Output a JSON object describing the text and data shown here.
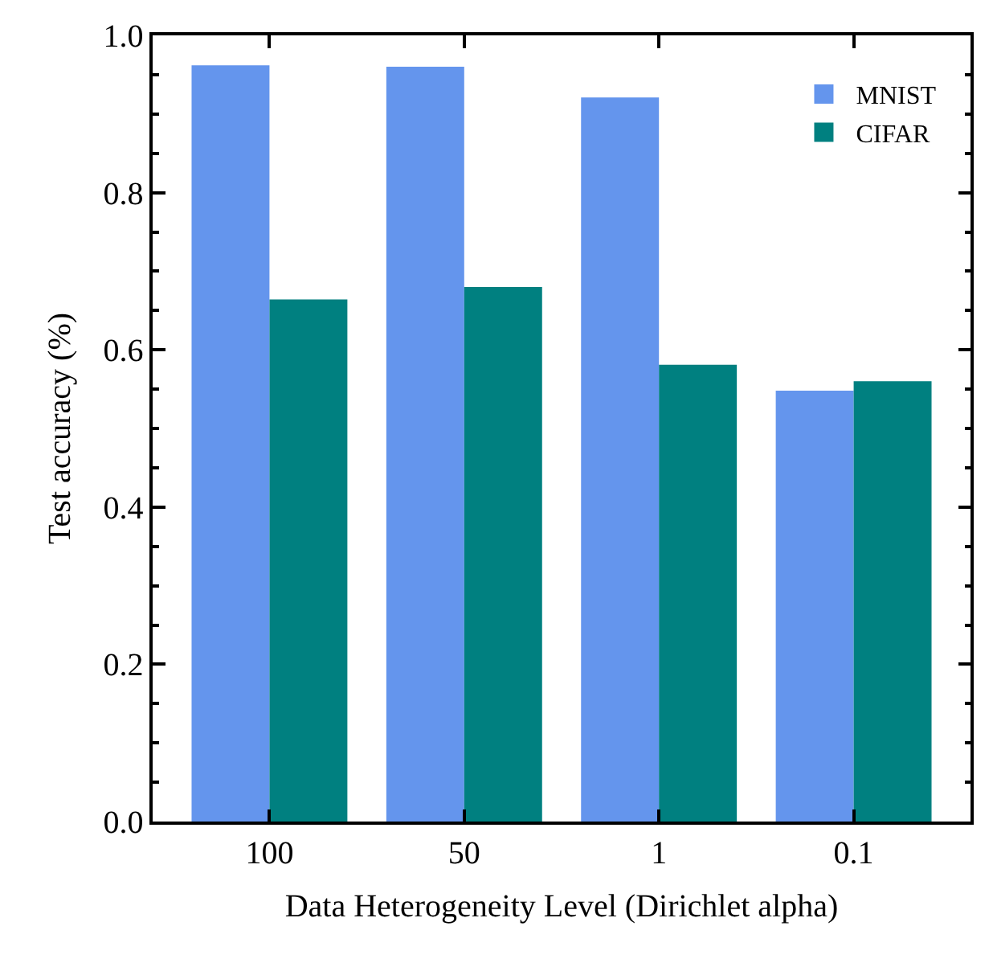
{
  "chart_data": {
    "type": "bar",
    "xlabel": "Data Heterogeneity Level (Dirichlet alpha)",
    "ylabel": "Test accuracy (%)",
    "categories": [
      "100",
      "50",
      "1",
      "0.1"
    ],
    "series": [
      {
        "name": "MNIST",
        "color": "#6495ed",
        "values": [
          0.962,
          0.96,
          0.921,
          0.548
        ]
      },
      {
        "name": "CIFAR",
        "color": "#008080",
        "values": [
          0.664,
          0.68,
          0.581,
          0.56
        ]
      }
    ],
    "ylim": [
      0,
      1.0
    ],
    "yticks": [
      {
        "value": 0,
        "label": "0.0"
      },
      0.2,
      0.4,
      0.6,
      0.8,
      {
        "value": 1,
        "label": "1.0"
      }
    ],
    "legend": "top right"
  }
}
